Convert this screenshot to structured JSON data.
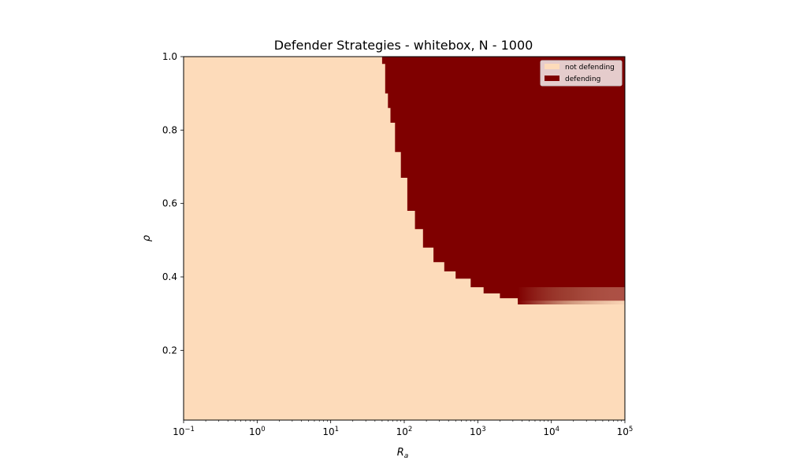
{
  "chart_data": {
    "type": "heatmap",
    "title": "Defender Strategies - whitebox, N - 1000",
    "xlabel": "R",
    "xlabel_sub": "a",
    "ylabel": "ρ",
    "x_scale": "log",
    "xlim": [
      0.1,
      100000
    ],
    "ylim": [
      0.01,
      1.0
    ],
    "x_ticks": [
      {
        "value": 0.1,
        "base": "10",
        "exp": "−1"
      },
      {
        "value": 1,
        "base": "10",
        "exp": "0"
      },
      {
        "value": 10,
        "base": "10",
        "exp": "1"
      },
      {
        "value": 100,
        "base": "10",
        "exp": "2"
      },
      {
        "value": 1000,
        "base": "10",
        "exp": "3"
      },
      {
        "value": 10000,
        "base": "10",
        "exp": "4"
      },
      {
        "value": 100000,
        "base": "10",
        "exp": "5"
      }
    ],
    "y_ticks": [
      {
        "value": 0.2,
        "label": "0.2"
      },
      {
        "value": 0.4,
        "label": "0.4"
      },
      {
        "value": 0.6,
        "label": "0.6"
      },
      {
        "value": 0.8,
        "label": "0.8"
      },
      {
        "value": 1.0,
        "label": "1.0"
      }
    ],
    "legend": {
      "placement": "top-right",
      "entries": [
        {
          "label": "not defending",
          "color": "#fddbba"
        },
        {
          "label": "defending",
          "color": "#7f0000"
        }
      ]
    },
    "boundary": {
      "description_units": "x = R_a, y = rho; region above the boundary is defending",
      "points": [
        [
          46,
          1.0
        ],
        [
          50,
          0.98
        ],
        [
          55,
          0.9
        ],
        [
          60,
          0.86
        ],
        [
          65,
          0.82
        ],
        [
          75,
          0.74
        ],
        [
          90,
          0.67
        ],
        [
          110,
          0.58
        ],
        [
          140,
          0.53
        ],
        [
          180,
          0.48
        ],
        [
          250,
          0.44
        ],
        [
          350,
          0.415
        ],
        [
          500,
          0.395
        ],
        [
          800,
          0.372
        ],
        [
          1200,
          0.355
        ],
        [
          2000,
          0.342
        ],
        [
          3500,
          0.335
        ],
        [
          100000,
          0.335
        ]
      ]
    },
    "transition_band": {
      "x_range": [
        3500,
        100000
      ],
      "rho_low": 0.325,
      "rho_high": 0.372
    }
  }
}
